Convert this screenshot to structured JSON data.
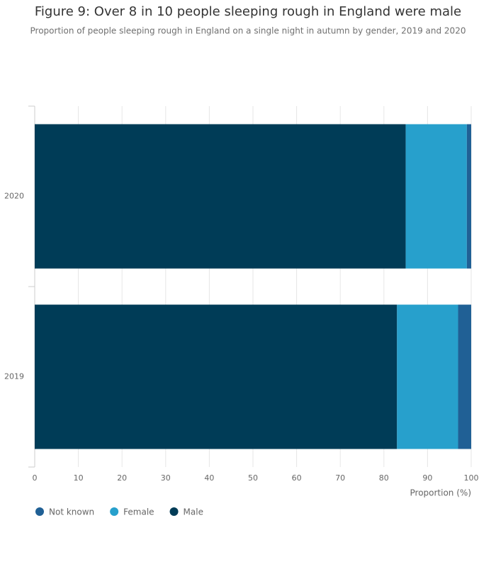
{
  "chart_data": {
    "type": "stacked-bar-horizontal",
    "title": "Figure 9: Over 8 in 10 people sleeping rough in England were male",
    "subtitle": "Proportion of people sleeping rough in England on a single night in autumn by gender, 2019 and 2020",
    "x_label": "Proportion (%)",
    "categories": [
      "2020",
      "2019"
    ],
    "series": [
      {
        "name": "Not known",
        "color": "#206095",
        "values": [
          1,
          3
        ]
      },
      {
        "name": "Female",
        "color": "#27a0cc",
        "values": [
          14,
          14
        ]
      },
      {
        "name": "Male",
        "color": "#003c57",
        "values": [
          85,
          83
        ]
      }
    ],
    "xlim": [
      0,
      100
    ],
    "xticks": [
      0,
      10,
      20,
      30,
      40,
      50,
      60,
      70,
      80,
      90,
      100
    ],
    "grid": true
  }
}
